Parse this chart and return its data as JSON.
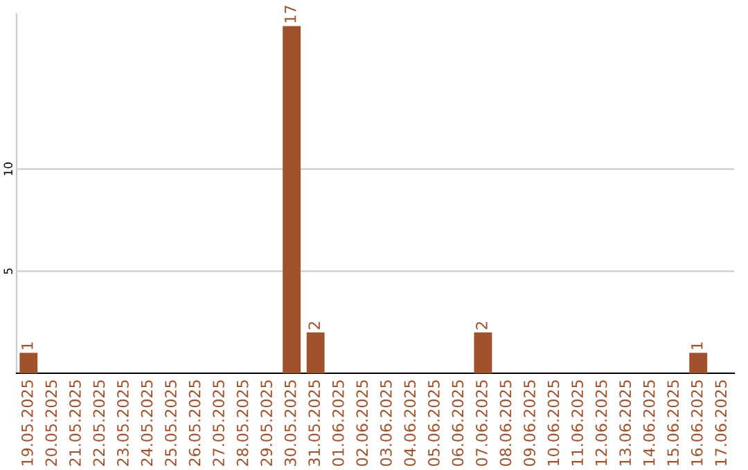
{
  "chart_data": {
    "type": "bar",
    "categories": [
      "19.05.2025",
      "20.05.2025",
      "21.05.2025",
      "22.05.2025",
      "23.05.2025",
      "24.05.2025",
      "25.05.2025",
      "26.05.2025",
      "27.05.2025",
      "28.05.2025",
      "29.05.2025",
      "30.05.2025",
      "31.05.2025",
      "01.06.2025",
      "02.06.2025",
      "03.06.2025",
      "04.06.2025",
      "05.06.2025",
      "06.06.2025",
      "07.06.2025",
      "08.06.2025",
      "09.06.2025",
      "10.06.2025",
      "11.06.2025",
      "12.06.2025",
      "13.06.2025",
      "14.06.2025",
      "15.06.2025",
      "16.06.2025",
      "17.06.2025"
    ],
    "values": [
      1,
      0,
      0,
      0,
      0,
      0,
      0,
      0,
      0,
      0,
      0,
      17,
      2,
      0,
      0,
      0,
      0,
      0,
      0,
      2,
      0,
      0,
      0,
      0,
      0,
      0,
      0,
      0,
      1,
      0
    ],
    "value_labels": [
      "1",
      null,
      null,
      null,
      null,
      null,
      null,
      null,
      null,
      null,
      null,
      "17",
      "2",
      null,
      null,
      null,
      null,
      null,
      null,
      "2",
      null,
      null,
      null,
      null,
      null,
      null,
      null,
      null,
      "1",
      null
    ],
    "color": "#a0522d",
    "ylim": [
      0,
      17.6
    ],
    "yticks": [
      5,
      10
    ],
    "grid": "y"
  }
}
